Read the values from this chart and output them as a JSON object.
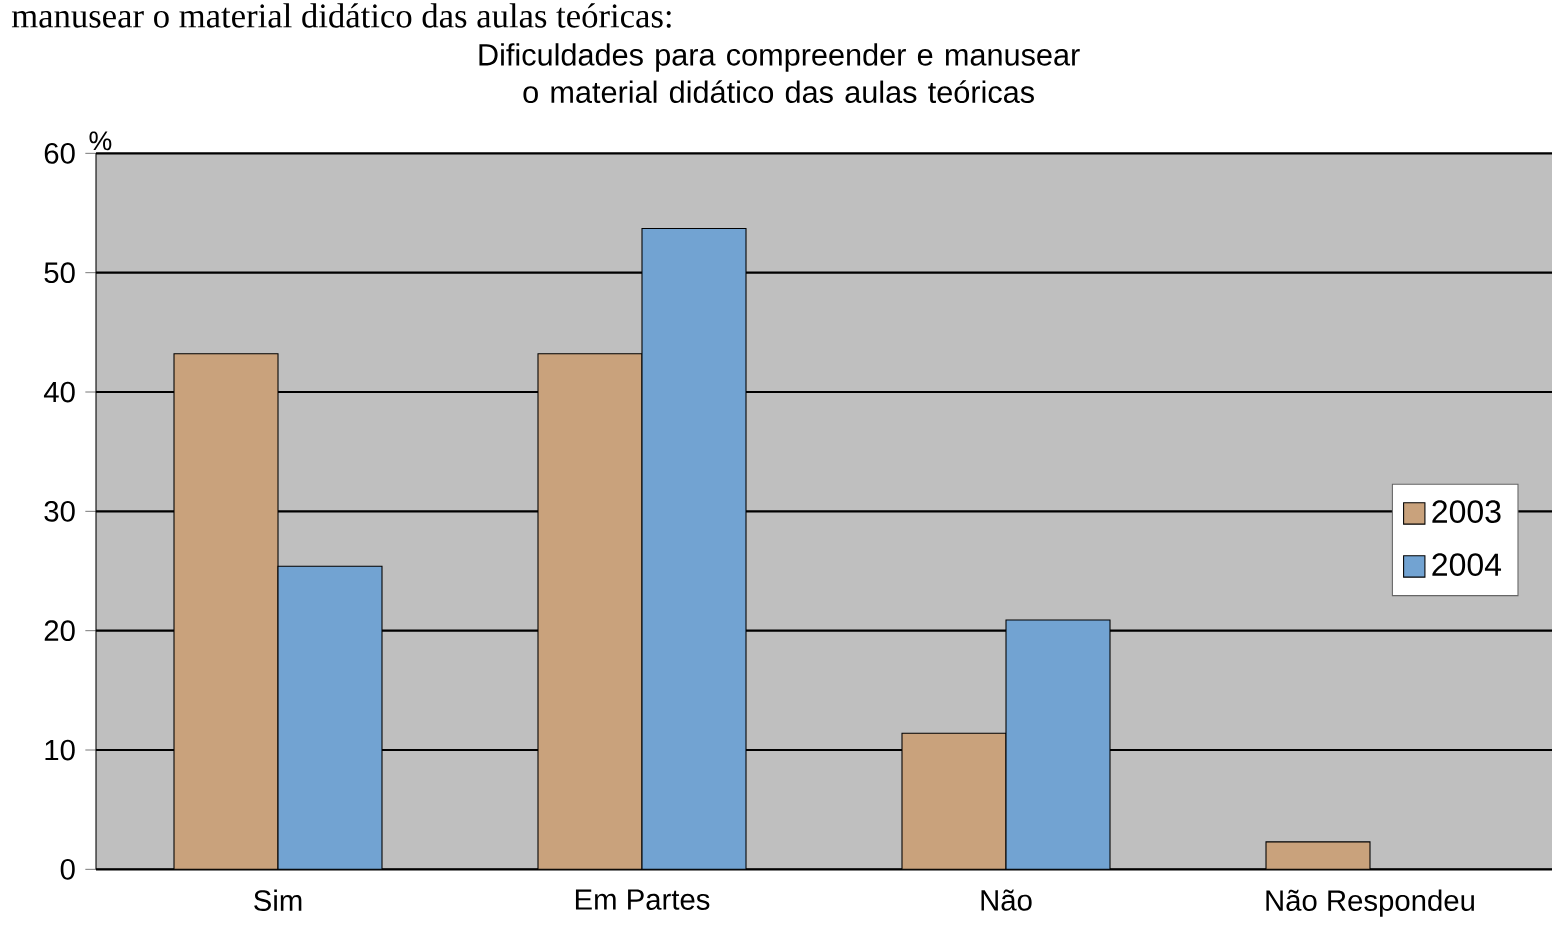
{
  "chart_data": {
    "type": "bar",
    "title": "Dificuldades para compreender e manusear o material didático das aulas teóricas",
    "ylabel": "%",
    "annotations": [
      "manusear o material didático das aulas teóricas:"
    ],
    "categories": [
      "Sim",
      "Em Partes",
      "Não",
      "Não Respondeu"
    ],
    "series": [
      {
        "name": "2003",
        "color": "#c9a27c",
        "values": [
          43.2,
          43.2,
          11.4,
          2.3
        ]
      },
      {
        "name": "2004",
        "color": "#72a3d2",
        "values": [
          25.4,
          53.7,
          20.9,
          null
        ]
      }
    ],
    "ylim": [
      0,
      60
    ],
    "yticks": [
      0,
      10,
      20,
      30,
      40,
      50,
      60
    ],
    "grid": "y",
    "legend": "right"
  }
}
